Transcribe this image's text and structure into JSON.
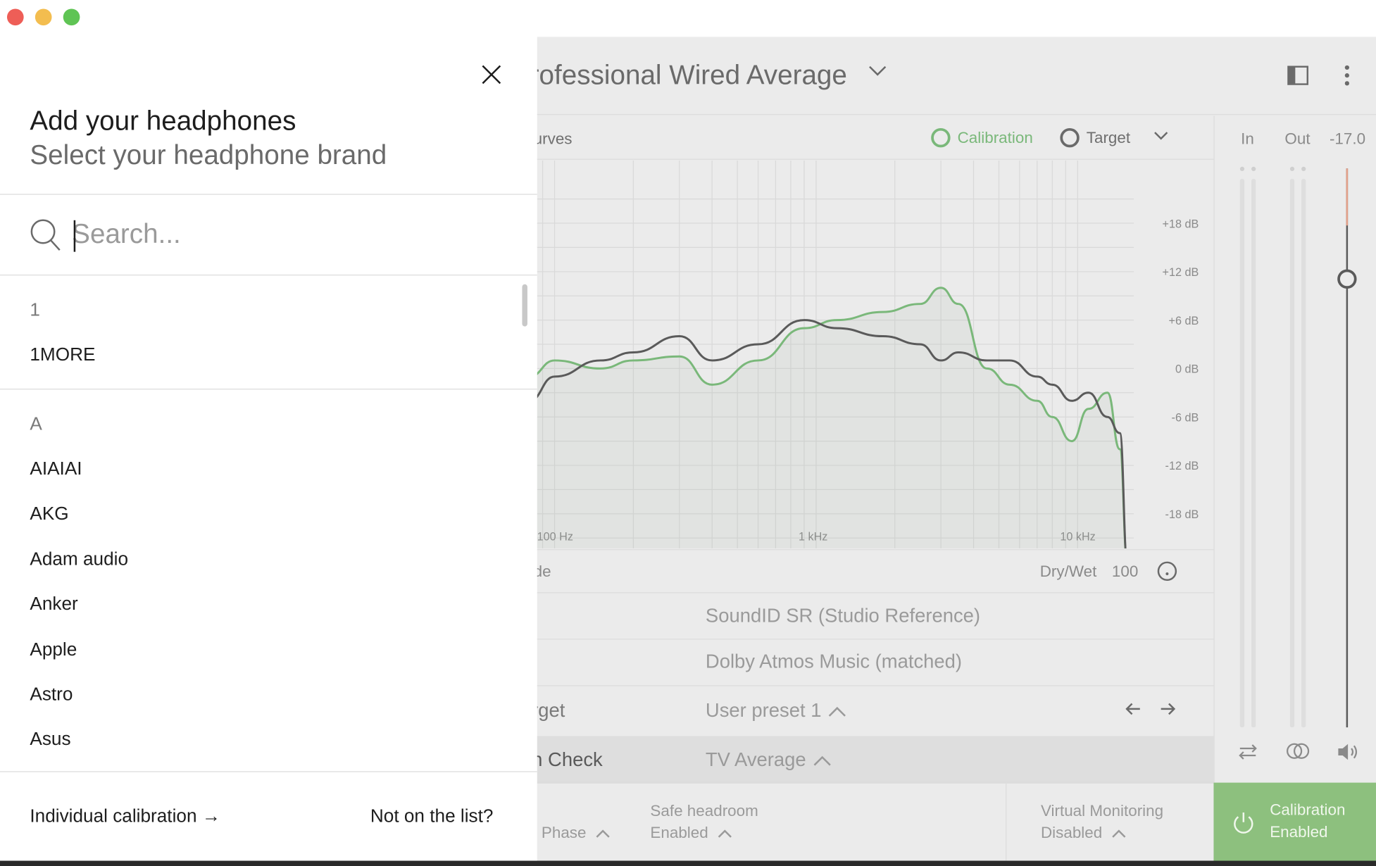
{
  "app": {
    "preset_title": "rofessional Wired Average",
    "curves_label": "urves",
    "legend": {
      "calibration": "Calibration",
      "target": "Target"
    },
    "y_ticks": [
      "+18 dB",
      "+12 dB",
      "+6 dB",
      "0 dB",
      "-6 dB",
      "-12 dB",
      "-18 dB"
    ],
    "x_ticks": [
      "100 Hz",
      "1 kHz",
      "10 kHz"
    ],
    "mode_label": "de",
    "drywet": {
      "label": "Dry/Wet",
      "value": "100"
    },
    "rows": {
      "soundid": "SoundID SR (Studio Reference)",
      "dolby": "Dolby Atmos Music (matched)",
      "target_left": "rget",
      "target_value": "User preset 1",
      "check_left": "n Check",
      "check_value": "TV Average"
    },
    "footer": {
      "phase": "Phase",
      "safe_headroom": "Safe headroom",
      "safe_state": "Enabled",
      "virtual_monitoring": "Virtual Monitoring",
      "vm_state": "Disabled"
    },
    "meters": {
      "in": "In",
      "out": "Out",
      "level": "-17.0"
    },
    "calibration_button": {
      "line1": "Calibration",
      "line2": "Enabled"
    },
    "colors": {
      "calibration_green": "#7ab87a",
      "accent_green": "#8dc07e",
      "target_gray": "#5a5a5a"
    }
  },
  "sheet": {
    "title": "Add your headphones",
    "subtitle": "Select your headphone brand",
    "search_placeholder": "Search...",
    "groups": [
      {
        "header": "1",
        "brands": [
          "1MORE"
        ]
      },
      {
        "header": "A",
        "brands": [
          "AIAIAI",
          "AKG",
          "Adam audio",
          "Anker",
          "Apple",
          "Astro",
          "Asus"
        ]
      }
    ],
    "individual_calibration": "Individual calibration →",
    "not_on_list": "Not on the list?"
  },
  "chart_data": {
    "type": "line",
    "xlabel": "",
    "ylabel": "",
    "x_scale": "log",
    "x_ticks": [
      "100 Hz",
      "1 kHz",
      "10 kHz"
    ],
    "ylim": [
      -24,
      24
    ],
    "grid": true,
    "series": [
      {
        "name": "Calibration",
        "color": "#7ab87a",
        "x": [
          80,
          100,
          150,
          200,
          300,
          400,
          600,
          900,
          1200,
          1800,
          2500,
          3000,
          3500,
          4500,
          5500,
          7000,
          8000,
          9500,
          11000,
          13000,
          14500,
          15500
        ],
        "y": [
          -1,
          1,
          0,
          1,
          1.5,
          -2,
          1,
          5,
          6,
          7,
          8,
          10,
          8,
          0,
          -2,
          -4,
          -6,
          -9,
          -5,
          -3,
          -10,
          -24
        ]
      },
      {
        "name": "Target",
        "color": "#5a5a5a",
        "x": [
          80,
          100,
          150,
          200,
          300,
          400,
          600,
          900,
          1200,
          1800,
          2500,
          3000,
          3500,
          4500,
          5500,
          7000,
          8000,
          9500,
          11000,
          13000,
          14500,
          15500
        ],
        "y": [
          -4,
          -1,
          1,
          2,
          4,
          1,
          3,
          6,
          5,
          4,
          3,
          1,
          2,
          1,
          1,
          -1,
          -2,
          -4,
          -3,
          -6,
          -8,
          -24
        ]
      }
    ]
  }
}
